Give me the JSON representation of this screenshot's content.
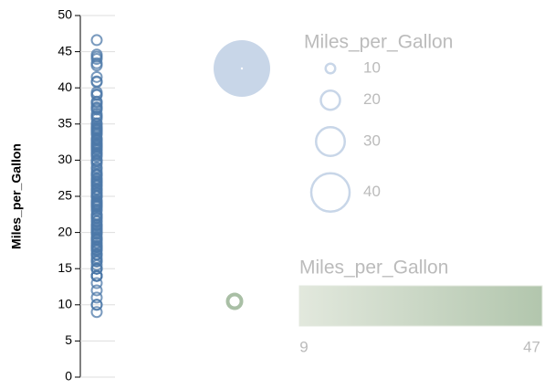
{
  "chart_data": {
    "type": "strip",
    "y_label": "Miles_per_Gallon",
    "ylim": [
      0,
      50
    ],
    "yticks": [
      0,
      5,
      10,
      15,
      20,
      25,
      30,
      35,
      40,
      45,
      50
    ],
    "color": "#4c78a8",
    "grid": true,
    "values": [
      18,
      15,
      18,
      16,
      17,
      15,
      14,
      14,
      14,
      15,
      15,
      14,
      15,
      14,
      24,
      22,
      18,
      21,
      27,
      26,
      25,
      24,
      25,
      26,
      21,
      10,
      10,
      11,
      9,
      27,
      28,
      25,
      19,
      16,
      17,
      19,
      18,
      14,
      12,
      13,
      22,
      23,
      28,
      30,
      31,
      35,
      20,
      29,
      32,
      33,
      17.5,
      16.5,
      22.5,
      24.5,
      29.5,
      26.5,
      31.5,
      36,
      25.5,
      33.5,
      20.5,
      18.5,
      30.5,
      21.5,
      43.1,
      36.1,
      32.8,
      39.4,
      19.9,
      19.4,
      20.2,
      19.2,
      25.1,
      20.6,
      20.8,
      18.6,
      18.1,
      17.7,
      27.5,
      27.2,
      30.9,
      21.1,
      23.2,
      23.8,
      23.9,
      20.3,
      21.6,
      16.2,
      19.8,
      22.3,
      17.6,
      18.2,
      16.9,
      15.5,
      31.9,
      34.1,
      35.7,
      27.4,
      25.4,
      34.2,
      34.5,
      31.8,
      37.3,
      28.4,
      28.8,
      26.8,
      41.5,
      38.1,
      32.1,
      37.2,
      26.4,
      24.3,
      19.1,
      34.3,
      29.8,
      31.3,
      37,
      32.2,
      46.6,
      27.9,
      40.8,
      44.3,
      43.4,
      36.4,
      44.6,
      40.9,
      33.8,
      32.7,
      23.7,
      23.6,
      32.4,
      26.6,
      25.8,
      23.5,
      39.1,
      39,
      35.1,
      32.3,
      37.7,
      34.7,
      34.4,
      29.9,
      33.7,
      32.9,
      31.6,
      28.1,
      30.7,
      24.2,
      22.4,
      34,
      38,
      44
    ],
    "size_legend": {
      "title": "Miles_per_Gallon",
      "values": [
        10,
        20,
        30,
        40
      ]
    },
    "color_legend": {
      "title": "Miles_per_Gallon",
      "domain": [
        9,
        47
      ]
    }
  }
}
